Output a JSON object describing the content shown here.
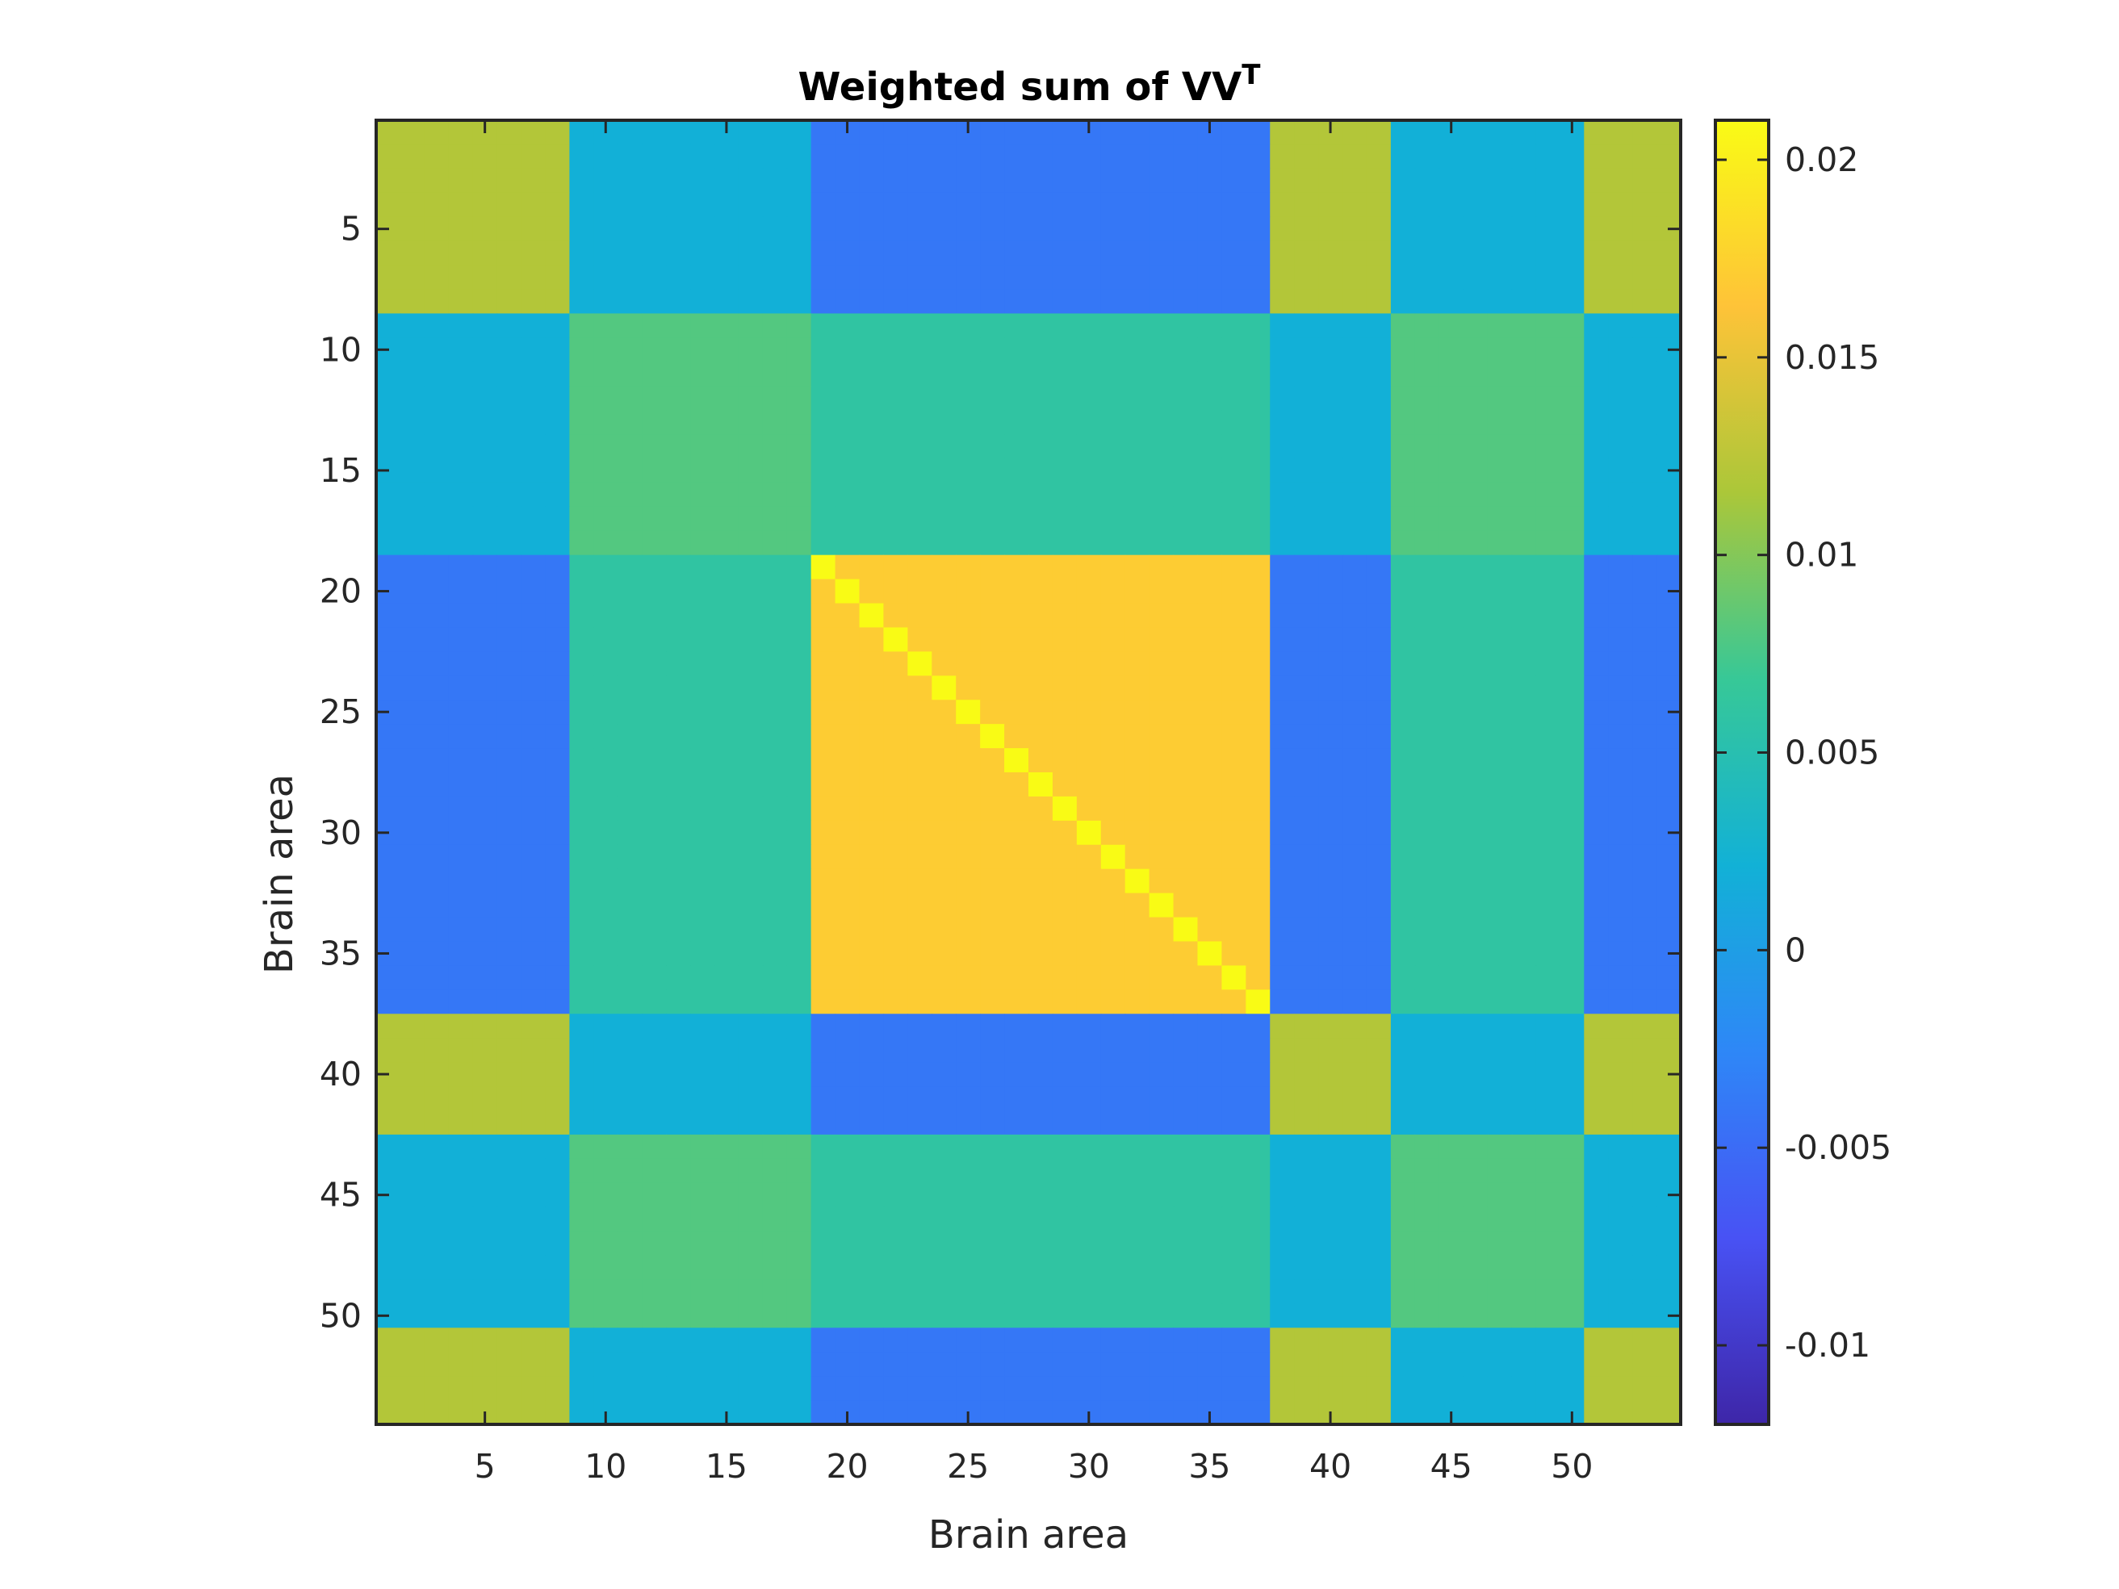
{
  "chart_data": {
    "type": "heatmap",
    "title": "Weighted sum of VV",
    "title_superscript": "T",
    "xlabel": "Brain area",
    "ylabel": "Brain area",
    "n": 54,
    "x_ticks": [
      5,
      10,
      15,
      20,
      25,
      30,
      35,
      40,
      45,
      50
    ],
    "y_ticks": [
      5,
      10,
      15,
      20,
      25,
      30,
      35,
      40,
      45,
      50
    ],
    "colorbar": {
      "range": [
        -0.012,
        0.021
      ],
      "ticks": [
        -0.01,
        -0.005,
        0,
        0.005,
        0.01,
        0.015,
        0.02
      ],
      "tick_labels": [
        "-0.01",
        "-0.005",
        "0",
        "0.005",
        "0.01",
        "0.015",
        "0.02"
      ],
      "colormap": "parula"
    },
    "values_note": "matrix values approximated from the image as a symmetric block structure",
    "group_map": [
      0,
      0,
      0,
      0,
      0,
      0,
      0,
      0,
      1,
      1,
      1,
      1,
      1,
      1,
      1,
      1,
      1,
      1,
      2,
      2,
      2,
      2,
      2,
      2,
      2,
      2,
      2,
      2,
      2,
      2,
      2,
      2,
      2,
      2,
      2,
      2,
      2,
      0,
      0,
      0,
      0,
      0,
      1,
      1,
      1,
      1,
      1,
      1,
      1,
      1,
      0,
      0,
      0,
      0
    ],
    "group_block_values": [
      [
        0.012,
        0.002,
        -0.004
      ],
      [
        0.002,
        0.008,
        0.006
      ],
      [
        -0.004,
        0.006,
        0.017
      ]
    ],
    "diagonal_value": 0.021
  }
}
